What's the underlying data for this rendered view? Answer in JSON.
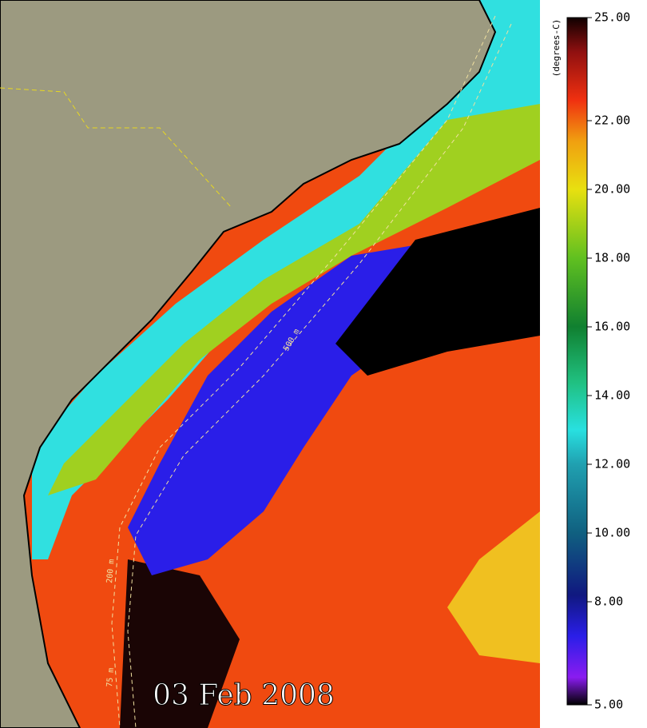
{
  "date": "03 Feb 2008",
  "colorbar": {
    "label": "(degrees-C)",
    "lim": [
      5,
      25
    ],
    "ticks": [
      {
        "value": 25,
        "label": "25.00"
      },
      {
        "value": 22,
        "label": "22.00"
      },
      {
        "value": 20,
        "label": "20.00"
      },
      {
        "value": 18,
        "label": "18.00"
      },
      {
        "value": 16,
        "label": "16.00"
      },
      {
        "value": 14,
        "label": "14.00"
      },
      {
        "value": 12,
        "label": "12.00"
      },
      {
        "value": 10,
        "label": "10.00"
      },
      {
        "value": 8,
        "label": "8.00"
      },
      {
        "value": 5,
        "label": "5.00"
      }
    ]
  },
  "isobaths": [
    "500 m",
    "200 m",
    "75 m"
  ]
}
